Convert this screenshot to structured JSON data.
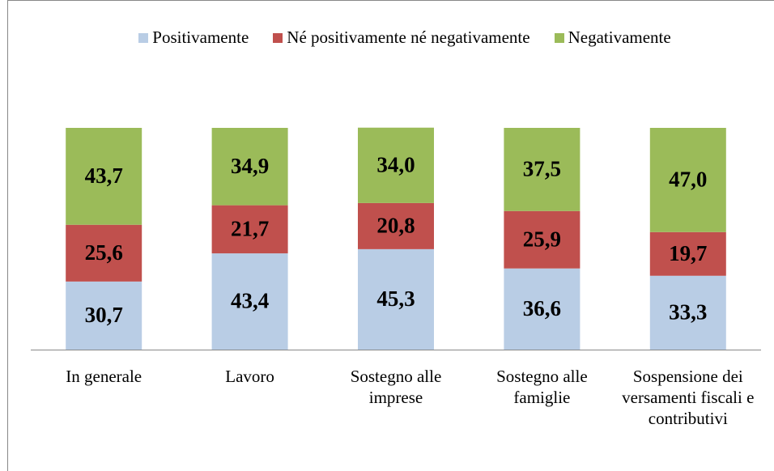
{
  "chart_data": {
    "type": "stacked_bar",
    "categories": [
      "In generale",
      "Lavoro",
      "Sostegno alle imprese",
      "Sostegno alle famiglie",
      "Sospensione dei versamenti fiscali e contributivi"
    ],
    "series": [
      {
        "name": "Positivamente",
        "color": "#b9cde5",
        "values": [
          30.7,
          43.4,
          45.3,
          36.6,
          33.3
        ],
        "value_labels": [
          "30,7",
          "43,4",
          "45,3",
          "36,6",
          "33,3"
        ]
      },
      {
        "name": "Né positivamente né negativamente",
        "color": "#c0504d",
        "values": [
          25.6,
          21.7,
          20.8,
          25.9,
          19.7
        ],
        "value_labels": [
          "25,6",
          "21,7",
          "20,8",
          "25,9",
          "19,7"
        ]
      },
      {
        "name": "Negativamente",
        "color": "#9bbb59",
        "values": [
          43.7,
          34.9,
          34.0,
          37.5,
          47.0
        ],
        "value_labels": [
          "43,7",
          "34,9",
          "34,0",
          "37,5",
          "47,0"
        ]
      }
    ],
    "ylim": [
      0,
      100
    ],
    "legend": "top"
  }
}
